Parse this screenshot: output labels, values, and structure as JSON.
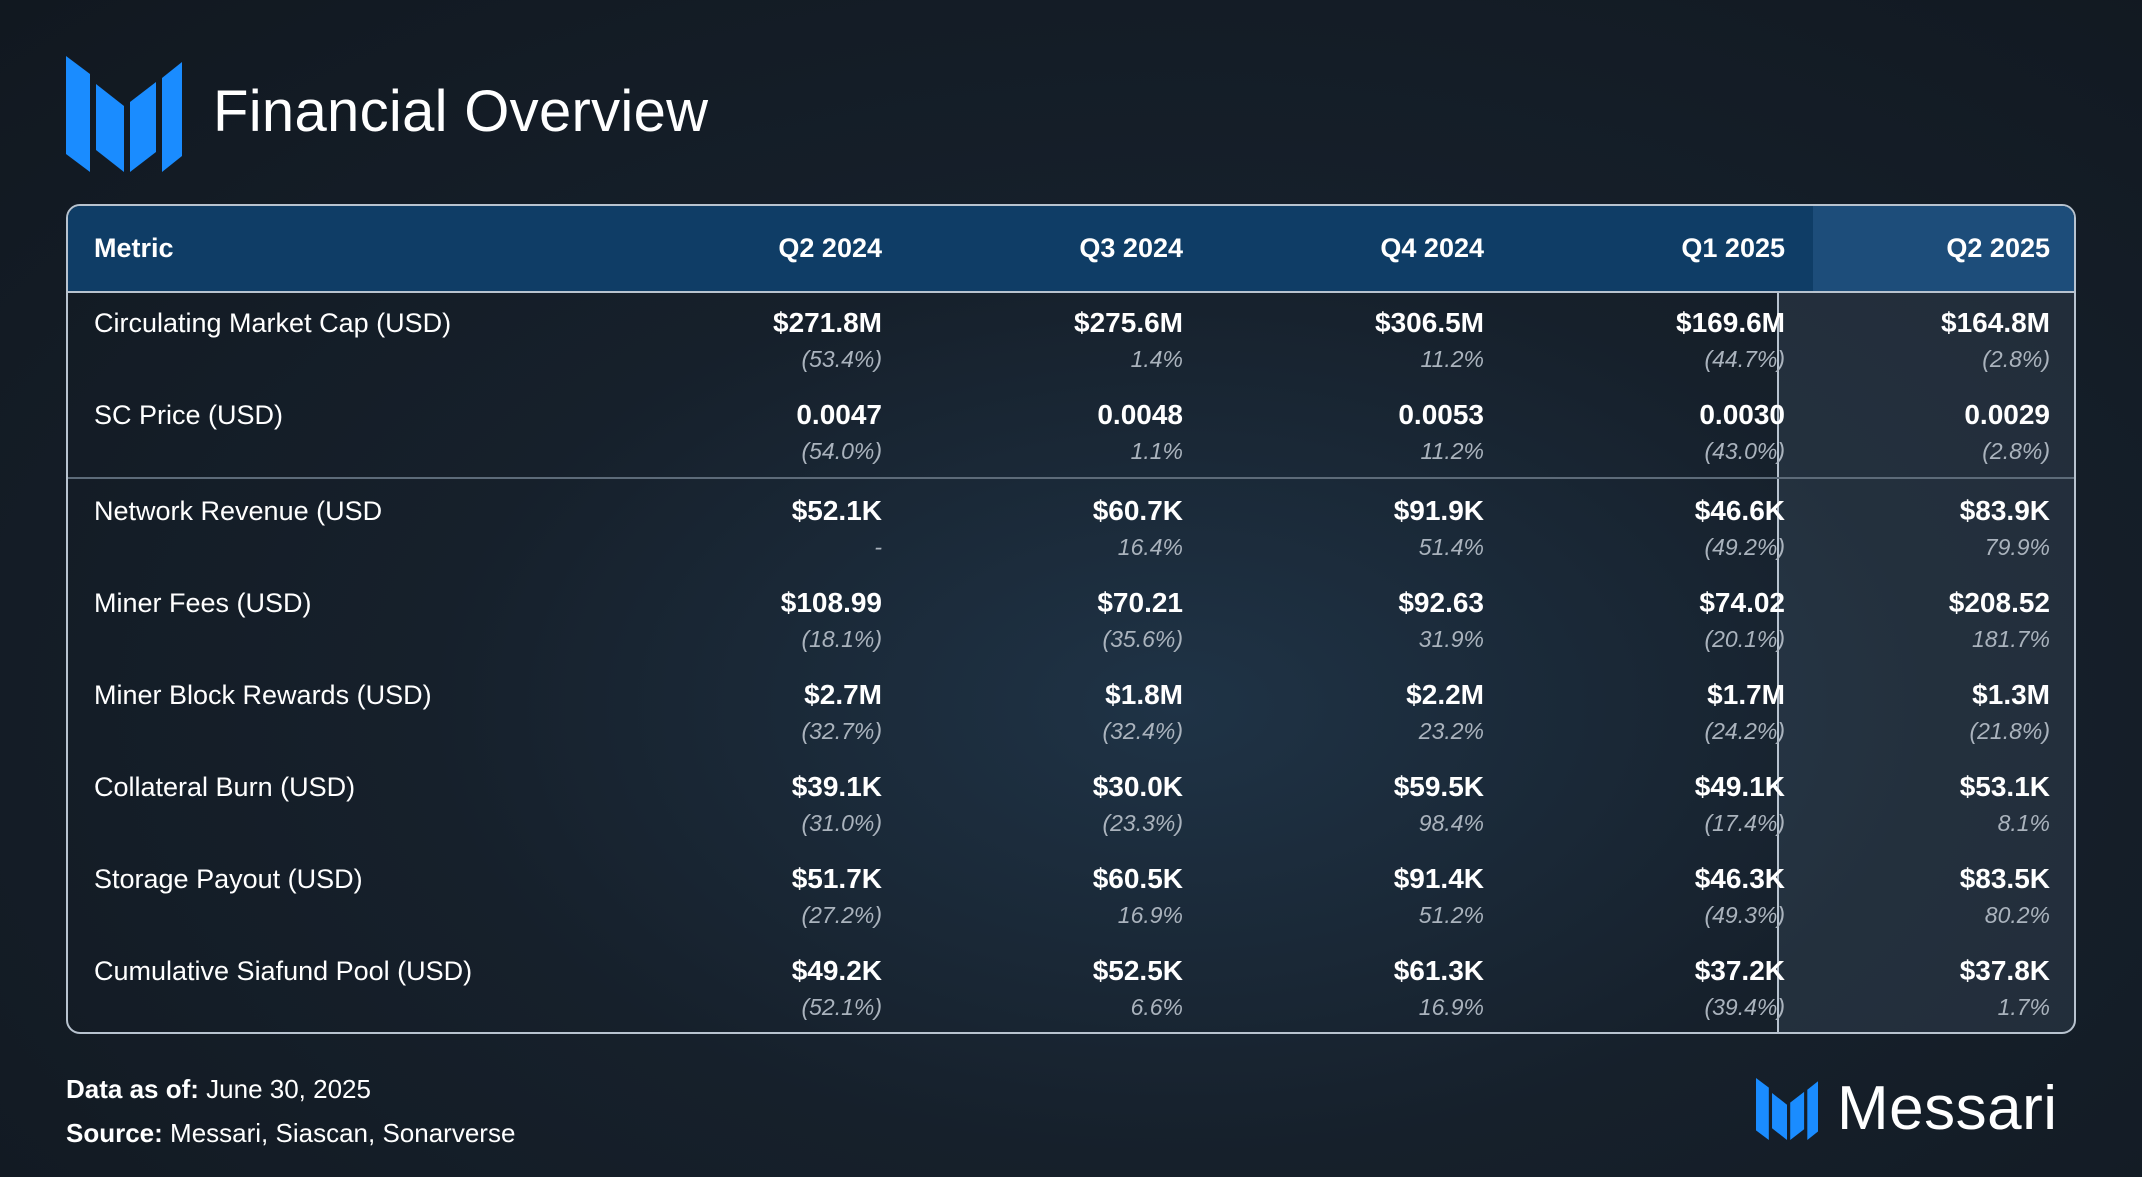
{
  "title": "Financial Overview",
  "columns": [
    "Metric",
    "Q2 2024",
    "Q3 2024",
    "Q4 2024",
    "Q1 2025",
    "Q2 2025"
  ],
  "rows": [
    {
      "metric": "Circulating Market Cap (USD)",
      "cells": [
        {
          "value": "$271.8M",
          "change": "(53.4%)"
        },
        {
          "value": "$275.6M",
          "change": "1.4%"
        },
        {
          "value": "$306.5M",
          "change": "11.2%"
        },
        {
          "value": "$169.6M",
          "change": "(44.7%)"
        },
        {
          "value": "$164.8M",
          "change": "(2.8%)"
        }
      ]
    },
    {
      "metric": "SC Price (USD)",
      "cells": [
        {
          "value": "0.0047",
          "change": "(54.0%)"
        },
        {
          "value": "0.0048",
          "change": "1.1%"
        },
        {
          "value": "0.0053",
          "change": "11.2%"
        },
        {
          "value": "0.0030",
          "change": "(43.0%)"
        },
        {
          "value": "0.0029",
          "change": "(2.8%)"
        }
      ]
    },
    {
      "metric": "Network Revenue (USD",
      "cells": [
        {
          "value": "$52.1K",
          "change": "-"
        },
        {
          "value": "$60.7K",
          "change": "16.4%"
        },
        {
          "value": "$91.9K",
          "change": "51.4%"
        },
        {
          "value": "$46.6K",
          "change": "(49.2%)"
        },
        {
          "value": "$83.9K",
          "change": "79.9%"
        }
      ]
    },
    {
      "metric": "Miner Fees (USD)",
      "cells": [
        {
          "value": "$108.99",
          "change": "(18.1%)"
        },
        {
          "value": "$70.21",
          "change": "(35.6%)"
        },
        {
          "value": "$92.63",
          "change": "31.9%"
        },
        {
          "value": "$74.02",
          "change": "(20.1%)"
        },
        {
          "value": "$208.52",
          "change": "181.7%"
        }
      ]
    },
    {
      "metric": "Miner Block Rewards (USD)",
      "cells": [
        {
          "value": "$2.7M",
          "change": "(32.7%)"
        },
        {
          "value": "$1.8M",
          "change": "(32.4%)"
        },
        {
          "value": "$2.2M",
          "change": "23.2%"
        },
        {
          "value": "$1.7M",
          "change": "(24.2%)"
        },
        {
          "value": "$1.3M",
          "change": "(21.8%)"
        }
      ]
    },
    {
      "metric": "Collateral Burn (USD)",
      "cells": [
        {
          "value": "$39.1K",
          "change": "(31.0%)"
        },
        {
          "value": "$30.0K",
          "change": "(23.3%)"
        },
        {
          "value": "$59.5K",
          "change": "98.4%"
        },
        {
          "value": "$49.1K",
          "change": "(17.4%)"
        },
        {
          "value": "$53.1K",
          "change": "8.1%"
        }
      ]
    },
    {
      "metric": "Storage Payout (USD)",
      "cells": [
        {
          "value": "$51.7K",
          "change": "(27.2%)"
        },
        {
          "value": "$60.5K",
          "change": "16.9%"
        },
        {
          "value": "$91.4K",
          "change": "51.2%"
        },
        {
          "value": "$46.3K",
          "change": "(49.3%)"
        },
        {
          "value": "$83.5K",
          "change": "80.2%"
        }
      ]
    },
    {
      "metric": "Cumulative Siafund Pool (USD)",
      "cells": [
        {
          "value": "$49.2K",
          "change": "(52.1%)"
        },
        {
          "value": "$52.5K",
          "change": "6.6%"
        },
        {
          "value": "$61.3K",
          "change": "16.9%"
        },
        {
          "value": "$37.2K",
          "change": "(39.4%)"
        },
        {
          "value": "$37.8K",
          "change": "1.7%"
        }
      ]
    }
  ],
  "footer": {
    "date_label": "Data as of:",
    "date_value": "June 30, 2025",
    "source_label": "Source:",
    "source_value": "Messari, Siascan, Sonarverse"
  },
  "brand": {
    "name": "Messari",
    "icon": "messari-logo-icon",
    "color": "#1a8cff"
  }
}
